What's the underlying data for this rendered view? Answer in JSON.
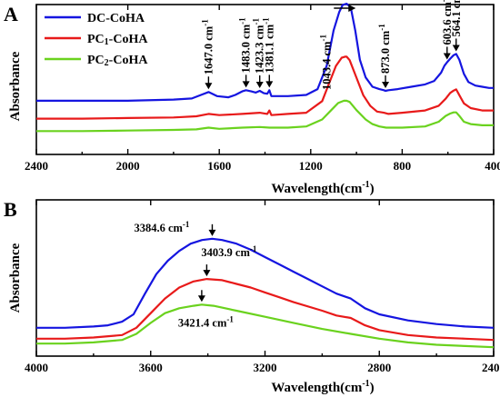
{
  "chart_data": [
    {
      "panel": "A",
      "type": "line",
      "xlabel": "Wavelength(cm",
      "xlabel_sup": "-1",
      "xlabel_tail": ")",
      "ylabel": "Absorbance",
      "xlim": [
        2400,
        400
      ],
      "ylim": [
        0,
        1.0
      ],
      "xticks": [
        2400,
        2000,
        1600,
        1200,
        800,
        400
      ],
      "legend": "top-left",
      "series": [
        {
          "name": "DC-CoHA",
          "color": "#1515e0",
          "x": [
            2400,
            2200,
            2000,
            1800,
            1720,
            1680,
            1647,
            1610,
            1560,
            1530,
            1500,
            1483,
            1460,
            1440,
            1423,
            1405,
            1390,
            1381,
            1372,
            1300,
            1220,
            1170,
            1130,
            1100,
            1075,
            1060,
            1043,
            1025,
            1005,
            985,
            960,
            930,
            900,
            880,
            873,
            860,
            820,
            760,
            700,
            660,
            630,
            615,
            603.6,
            590,
            575,
            564,
            550,
            530,
            510,
            480,
            450,
            420,
            400
          ],
          "y": [
            0.1,
            0.1,
            0.1,
            0.11,
            0.12,
            0.15,
            0.175,
            0.14,
            0.13,
            0.15,
            0.18,
            0.19,
            0.18,
            0.17,
            0.185,
            0.165,
            0.16,
            0.19,
            0.14,
            0.14,
            0.15,
            0.2,
            0.4,
            0.7,
            0.86,
            0.92,
            0.93,
            0.9,
            0.7,
            0.45,
            0.3,
            0.22,
            0.2,
            0.19,
            0.185,
            0.19,
            0.2,
            0.22,
            0.24,
            0.27,
            0.34,
            0.4,
            0.43,
            0.46,
            0.49,
            0.5,
            0.45,
            0.33,
            0.26,
            0.23,
            0.22,
            0.21,
            0.21
          ]
        },
        {
          "name": "PC1-CoHA",
          "name_main": "PC",
          "name_sub": "1",
          "name_tail": "-CoHA",
          "color": "#e81a1a",
          "x": [
            2400,
            2200,
            2000,
            1800,
            1700,
            1647,
            1600,
            1500,
            1423,
            1390,
            1381,
            1372,
            1300,
            1220,
            1150,
            1120,
            1090,
            1065,
            1050,
            1043,
            1030,
            1000,
            970,
            940,
            910,
            880,
            860,
            800,
            700,
            640,
            610,
            590,
            575,
            564,
            550,
            530,
            500,
            450,
            400
          ],
          "y": [
            0.05,
            0.05,
            0.055,
            0.06,
            0.07,
            0.09,
            0.08,
            0.09,
            0.1,
            0.09,
            0.12,
            0.08,
            0.09,
            0.1,
            0.2,
            0.35,
            0.5,
            0.57,
            0.58,
            0.58,
            0.55,
            0.4,
            0.25,
            0.16,
            0.11,
            0.1,
            0.09,
            0.1,
            0.12,
            0.16,
            0.22,
            0.27,
            0.29,
            0.3,
            0.25,
            0.18,
            0.14,
            0.12,
            0.12
          ]
        },
        {
          "name": "PC2-CoHA",
          "name_main": "PC",
          "name_sub": "2",
          "name_tail": "-CoHA",
          "color": "#6ad21e",
          "x": [
            2400,
            2200,
            2000,
            1800,
            1700,
            1647,
            1600,
            1500,
            1423,
            1380,
            1300,
            1220,
            1150,
            1110,
            1080,
            1055,
            1043,
            1030,
            1000,
            960,
            930,
            900,
            870,
            800,
            700,
            640,
            610,
            590,
            575,
            564,
            550,
            530,
            500,
            450,
            400
          ],
          "y": [
            0.02,
            0.02,
            0.025,
            0.03,
            0.035,
            0.05,
            0.04,
            0.05,
            0.055,
            0.05,
            0.05,
            0.06,
            0.12,
            0.2,
            0.26,
            0.28,
            0.28,
            0.27,
            0.2,
            0.12,
            0.08,
            0.06,
            0.05,
            0.05,
            0.06,
            0.1,
            0.15,
            0.17,
            0.18,
            0.18,
            0.15,
            0.1,
            0.08,
            0.07,
            0.07
          ]
        }
      ],
      "annotations": [
        {
          "text": "1647.0 cm",
          "sup": "-1",
          "x": 1647,
          "y": 0.175
        },
        {
          "text": "1483.0 cm",
          "sup": "-1",
          "x": 1483,
          "y": 0.19
        },
        {
          "text": "1423.3 cm",
          "sup": "-1",
          "x": 1423,
          "y": 0.185
        },
        {
          "text": "1381.1 cm",
          "sup": "-1",
          "x": 1381,
          "y": 0.19
        },
        {
          "text": "1043.4 cm",
          "sup": "-1",
          "x": 1043,
          "y": 0.93
        },
        {
          "text": "873.0 cm",
          "sup": "-1",
          "x": 873,
          "y": 0.185
        },
        {
          "text": "603.6 cm",
          "sup": "-1",
          "x": 603.6,
          "y": 0.43
        },
        {
          "text": "564.1 cm",
          "sup": "-1",
          "x": 564,
          "y": 0.5
        }
      ]
    },
    {
      "panel": "B",
      "type": "line",
      "xlabel": "Wavelength(cm",
      "xlabel_sup": "-1",
      "xlabel_tail": ")",
      "ylabel": "Absorbance",
      "xlim": [
        4000,
        2400
      ],
      "ylim": [
        0,
        1.0
      ],
      "xticks": [
        4000,
        3600,
        3200,
        2800,
        2400
      ],
      "series": [
        {
          "name": "DC-CoHA",
          "color": "#1515e0",
          "x": [
            4000,
            3900,
            3800,
            3750,
            3700,
            3660,
            3620,
            3580,
            3540,
            3500,
            3460,
            3420,
            3384.6,
            3350,
            3300,
            3250,
            3200,
            3150,
            3100,
            3050,
            3000,
            2950,
            2900,
            2850,
            2800,
            2700,
            2600,
            2500,
            2400
          ],
          "y": [
            0.22,
            0.22,
            0.23,
            0.24,
            0.27,
            0.33,
            0.5,
            0.66,
            0.77,
            0.85,
            0.91,
            0.94,
            0.95,
            0.94,
            0.91,
            0.86,
            0.8,
            0.74,
            0.68,
            0.62,
            0.56,
            0.5,
            0.46,
            0.38,
            0.33,
            0.28,
            0.25,
            0.23,
            0.22
          ]
        },
        {
          "name": "PC1-CoHA",
          "color": "#e81a1a",
          "x": [
            4000,
            3900,
            3800,
            3700,
            3650,
            3600,
            3550,
            3500,
            3450,
            3403.9,
            3350,
            3300,
            3250,
            3200,
            3150,
            3100,
            3000,
            2950,
            2900,
            2850,
            2800,
            2700,
            2600,
            2500,
            2400
          ],
          "y": [
            0.13,
            0.13,
            0.14,
            0.16,
            0.22,
            0.34,
            0.46,
            0.55,
            0.6,
            0.62,
            0.61,
            0.58,
            0.55,
            0.51,
            0.47,
            0.43,
            0.36,
            0.32,
            0.3,
            0.24,
            0.2,
            0.16,
            0.14,
            0.13,
            0.12
          ]
        },
        {
          "name": "PC2-CoHA",
          "color": "#6ad21e",
          "x": [
            4000,
            3900,
            3800,
            3700,
            3650,
            3600,
            3550,
            3500,
            3450,
            3421.4,
            3380,
            3300,
            3200,
            3100,
            3000,
            2900,
            2800,
            2700,
            2600,
            2500,
            2400
          ],
          "y": [
            0.09,
            0.09,
            0.1,
            0.12,
            0.17,
            0.26,
            0.34,
            0.38,
            0.4,
            0.41,
            0.4,
            0.36,
            0.31,
            0.26,
            0.21,
            0.17,
            0.13,
            0.1,
            0.08,
            0.07,
            0.06
          ]
        }
      ],
      "annotations": [
        {
          "text": "3384.6 cm",
          "sup": "-1",
          "x": 3384.6,
          "y": 0.95
        },
        {
          "text": "3403.9 cm",
          "sup": "-1",
          "x": 3403.9,
          "y": 0.62
        },
        {
          "text": "3421.4 cm",
          "sup": "-1",
          "x": 3421.4,
          "y": 0.41
        }
      ]
    }
  ]
}
